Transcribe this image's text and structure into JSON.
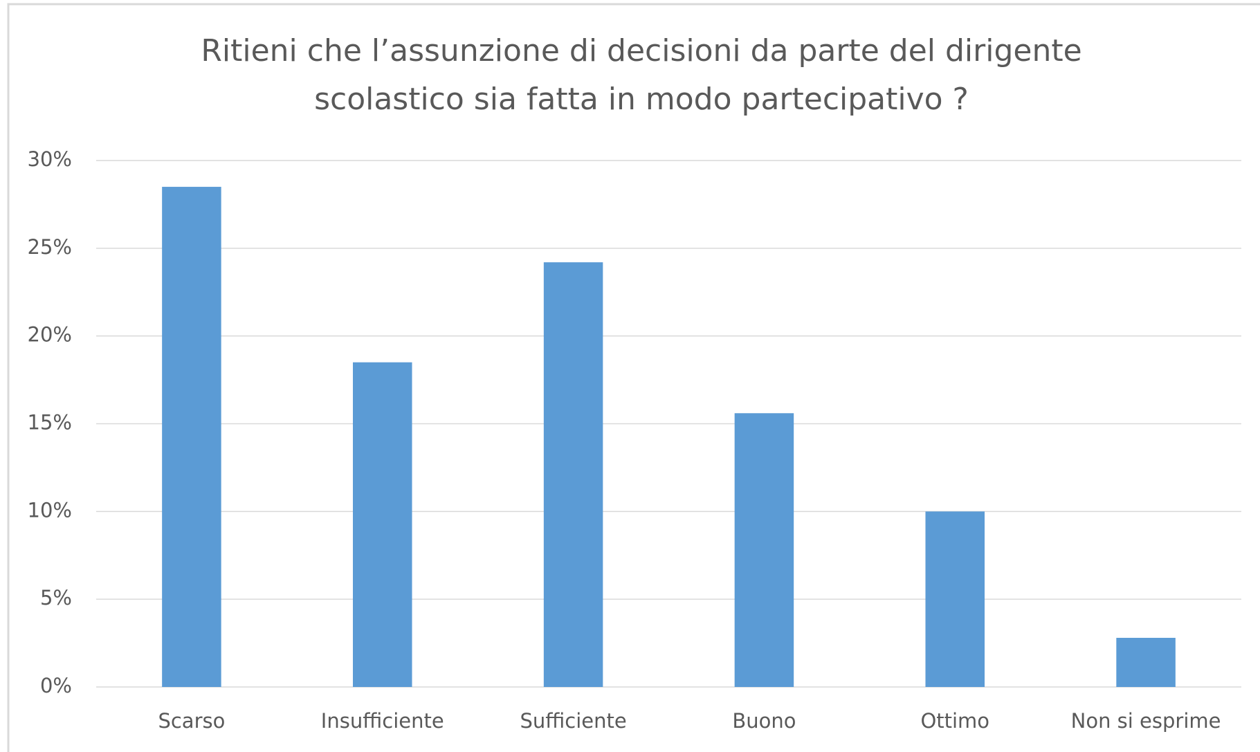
{
  "chart_data": {
    "type": "bar",
    "title": [
      "Ritieni che l’assunzione di decisioni da parte del dirigente",
      "scolastico sia fatta in modo partecipativo ?"
    ],
    "categories": [
      "Scarso",
      "Insufficiente",
      "Sufficiente",
      "Buono",
      "Ottimo",
      "Non si esprime"
    ],
    "values": [
      28.5,
      18.5,
      24.2,
      15.6,
      10.0,
      2.8
    ],
    "color": "#5b9bd5",
    "ylim": [
      0,
      30
    ],
    "yticks": [
      {
        "value": 0,
        "label": "0%"
      },
      {
        "value": 5,
        "label": "5%"
      },
      {
        "value": 10,
        "label": "10%"
      },
      {
        "value": 15,
        "label": "15%"
      },
      {
        "value": 20,
        "label": "20%"
      },
      {
        "value": 25,
        "label": "25%"
      },
      {
        "value": 30,
        "label": "30%"
      }
    ],
    "grid": true
  }
}
